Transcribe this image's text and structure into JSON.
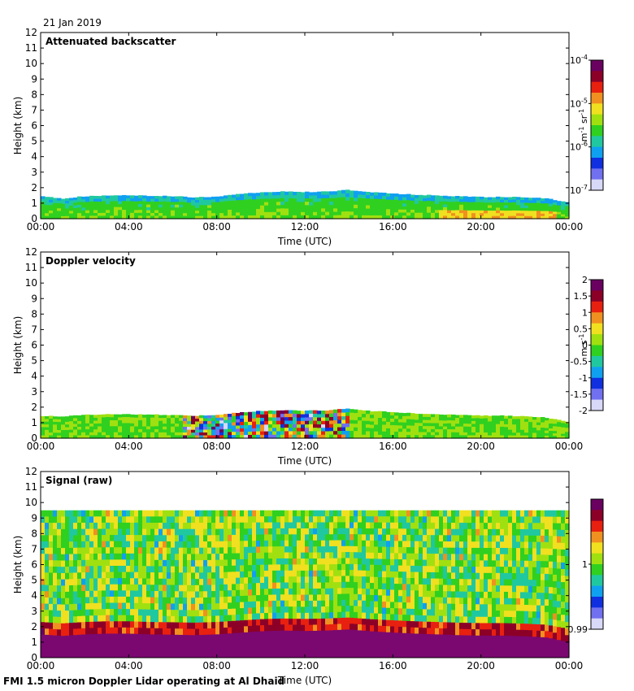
{
  "header": {
    "date": "21 Jan 2019"
  },
  "footer": {
    "caption": "FMI 1.5 micron Doppler Lidar operating at Al Dhaid"
  },
  "colors": {
    "signal_floor": "#7b0870",
    "colormap": [
      "#d8d8f8",
      "#7070f0",
      "#1030e0",
      "#10a0f0",
      "#20c8a0",
      "#30d020",
      "#a0e010",
      "#f0e020",
      "#f09020",
      "#e82010",
      "#8c0028",
      "#6a0060"
    ]
  },
  "chart_data": [
    {
      "type": "heatmap",
      "title": "Attenuated backscatter",
      "xlabel": "Time (UTC)",
      "ylabel": "Height (km)",
      "xlim": [
        0,
        24
      ],
      "ylim": [
        0,
        12
      ],
      "x_ticks": [
        0,
        4,
        8,
        12,
        16,
        20,
        24
      ],
      "x_tick_labels": [
        "00:00",
        "04:00",
        "08:00",
        "12:00",
        "16:00",
        "20:00",
        "00:00"
      ],
      "y_ticks": [
        0,
        1,
        2,
        3,
        4,
        5,
        6,
        7,
        8,
        9,
        10,
        11,
        12
      ],
      "y_tick_labels": [
        "0",
        "1",
        "2",
        "3",
        "4",
        "5",
        "6",
        "7",
        "8",
        "9",
        "10",
        "11",
        "12"
      ],
      "boundary_layer_top_km": [
        1.45,
        1.3,
        1.45,
        1.5,
        1.5,
        1.48,
        1.45,
        1.38,
        1.4,
        1.6,
        1.7,
        1.75,
        1.72,
        1.75,
        1.85,
        1.7,
        1.62,
        1.55,
        1.5,
        1.45,
        1.4,
        1.4,
        1.38,
        1.3,
        1.05
      ],
      "colorbar": {
        "label_base": "m",
        "label_exp1": "-1",
        "label_mid": " sr",
        "label_exp2": "-1",
        "scale": "log",
        "range": [
          1e-07,
          0.0001
        ],
        "ticks": [
          {
            "value": 0.0001,
            "base": "10",
            "exp": "-4"
          },
          {
            "value": 1e-05,
            "base": "10",
            "exp": "-5"
          },
          {
            "value": 1e-06,
            "base": "10",
            "exp": "-6"
          },
          {
            "value": 1e-07,
            "base": "10",
            "exp": "-7"
          }
        ]
      }
    },
    {
      "type": "heatmap",
      "title": "Doppler velocity",
      "xlabel": "Time (UTC)",
      "ylabel": "Height (km)",
      "xlim": [
        0,
        24
      ],
      "ylim": [
        0,
        12
      ],
      "x_ticks": [
        0,
        4,
        8,
        12,
        16,
        20,
        24
      ],
      "x_tick_labels": [
        "00:00",
        "04:00",
        "08:00",
        "12:00",
        "16:00",
        "20:00",
        "00:00"
      ],
      "y_ticks": [
        0,
        1,
        2,
        3,
        4,
        5,
        6,
        7,
        8,
        9,
        10,
        11,
        12
      ],
      "y_tick_labels": [
        "0",
        "1",
        "2",
        "3",
        "4",
        "5",
        "6",
        "7",
        "8",
        "9",
        "10",
        "11",
        "12"
      ],
      "boundary_layer_top_km": [
        1.45,
        1.4,
        1.5,
        1.55,
        1.55,
        1.52,
        1.5,
        1.45,
        1.5,
        1.65,
        1.75,
        1.8,
        1.78,
        1.8,
        1.9,
        1.75,
        1.68,
        1.6,
        1.55,
        1.5,
        1.45,
        1.45,
        1.4,
        1.32,
        1.05
      ],
      "convective_period_hours": [
        6.5,
        14
      ],
      "colorbar": {
        "label_base": "m s",
        "label_exp1": "-1",
        "scale": "linear",
        "range": [
          -2,
          2
        ],
        "ticks": [
          {
            "value": 2,
            "label": "2"
          },
          {
            "value": 1.5,
            "label": "1.5"
          },
          {
            "value": 1,
            "label": "1"
          },
          {
            "value": 0.5,
            "label": "0.5"
          },
          {
            "value": 0,
            "label": "0"
          },
          {
            "value": -0.5,
            "label": "-0.5"
          },
          {
            "value": -1,
            "label": "-1"
          },
          {
            "value": -1.5,
            "label": "-1.5"
          },
          {
            "value": -2,
            "label": "-2"
          }
        ]
      }
    },
    {
      "type": "heatmap",
      "title": "Signal (raw)",
      "xlabel": "Time (UTC)",
      "ylabel": "Height (km)",
      "xlim": [
        0,
        24
      ],
      "ylim": [
        0,
        12
      ],
      "x_ticks": [
        0,
        4,
        8,
        12,
        16,
        20,
        24
      ],
      "x_tick_labels": [
        "00:00",
        "04:00",
        "08:00",
        "12:00",
        "16:00",
        "20:00",
        "00:00"
      ],
      "y_ticks": [
        0,
        1,
        2,
        3,
        4,
        5,
        6,
        7,
        8,
        9,
        10,
        11,
        12
      ],
      "y_tick_labels": [
        "0",
        "1",
        "2",
        "3",
        "4",
        "5",
        "6",
        "7",
        "8",
        "9",
        "10",
        "11",
        "12"
      ],
      "data_top_km": 9.5,
      "boundary_layer_top_km": [
        1.5,
        1.4,
        1.5,
        1.55,
        1.55,
        1.5,
        1.48,
        1.45,
        1.5,
        1.6,
        1.7,
        1.75,
        1.72,
        1.75,
        1.82,
        1.7,
        1.62,
        1.55,
        1.5,
        1.45,
        1.42,
        1.42,
        1.38,
        1.3,
        1.0
      ],
      "colorbar": {
        "scale": "linear",
        "range": [
          0.99,
          1.01
        ],
        "ticks": [
          {
            "value": 1,
            "label": "1"
          },
          {
            "value": 0.99,
            "label": "0.99"
          }
        ]
      }
    }
  ]
}
